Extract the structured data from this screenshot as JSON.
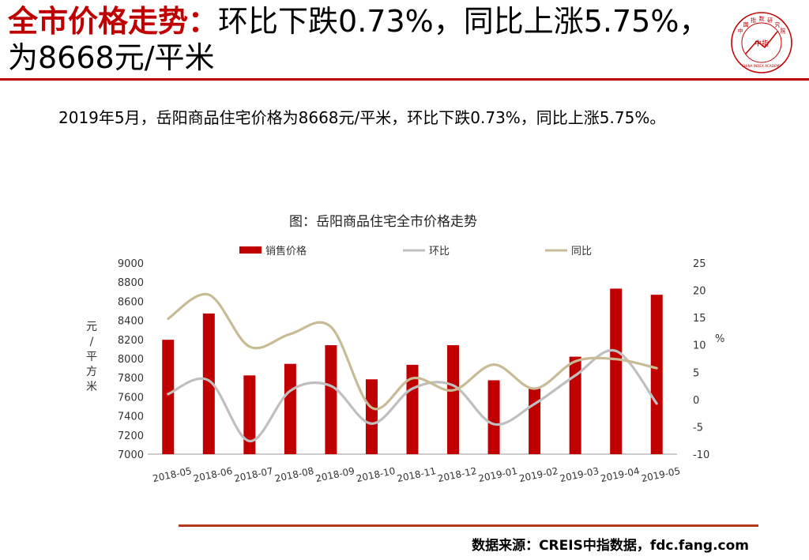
{
  "slide": {
    "title_red": "全市价格走势：",
    "title_rest": "环比下跌0.73%，同比上涨5.75%，为8668元/平米",
    "summary": "2019年5月，岳阳商品住宅价格为8668元/平米，环比下跌0.73%，同比上涨5.75%。",
    "source": "数据来源：CREIS中指数据，fdc.fang.com"
  },
  "logo": {
    "ring_text": "中国指数研究院",
    "center_text": "中指",
    "english_text": "CHINA INDEX ACADEMY"
  },
  "colors": {
    "bar": "#c00000",
    "mom": "#bfbfbf",
    "yoy": "#c8bb96",
    "accent": "#c00000"
  },
  "chart_data": {
    "type": "bar",
    "title": "图：岳阳商品住宅全市价格走势",
    "categories": [
      "2018-05",
      "2018-06",
      "2018-07",
      "2018-08",
      "2018-09",
      "2018-10",
      "2018-11",
      "2018-12",
      "2019-01",
      "2019-02",
      "2019-03",
      "2019-04",
      "2019-05"
    ],
    "left_axis_label": [
      "元",
      "/",
      "平",
      "方",
      "米"
    ],
    "right_axis_label": "%",
    "ylim_left": [
      7000,
      9000
    ],
    "yticks_left": [
      "9000",
      "8800",
      "8600",
      "8400",
      "8200",
      "8000",
      "7800",
      "7600",
      "7400",
      "7200",
      "7000"
    ],
    "ylim_right": [
      -10,
      25
    ],
    "yticks_right": [
      "25",
      "20",
      "15",
      "10",
      "5",
      "0",
      "-5",
      "-10"
    ],
    "legend_position": "top",
    "series": [
      {
        "name": "销售价格",
        "type": "bar",
        "axis": "left",
        "values": [
          8197,
          8472,
          7824,
          7945,
          8140,
          7783,
          7935,
          8140,
          7773,
          7685,
          8020,
          8732,
          8668
        ]
      },
      {
        "name": "环比",
        "type": "line",
        "axis": "right",
        "values": [
          1.0,
          3.5,
          -7.6,
          1.6,
          2.5,
          -4.4,
          2.0,
          2.6,
          -4.5,
          -0.8,
          4.4,
          8.9,
          -0.73
        ]
      },
      {
        "name": "同比",
        "type": "line",
        "axis": "right",
        "values": [
          14.8,
          19.2,
          9.7,
          12.0,
          13.3,
          -1.5,
          3.9,
          1.7,
          6.4,
          2.0,
          7.0,
          7.4,
          5.75
        ]
      }
    ]
  }
}
